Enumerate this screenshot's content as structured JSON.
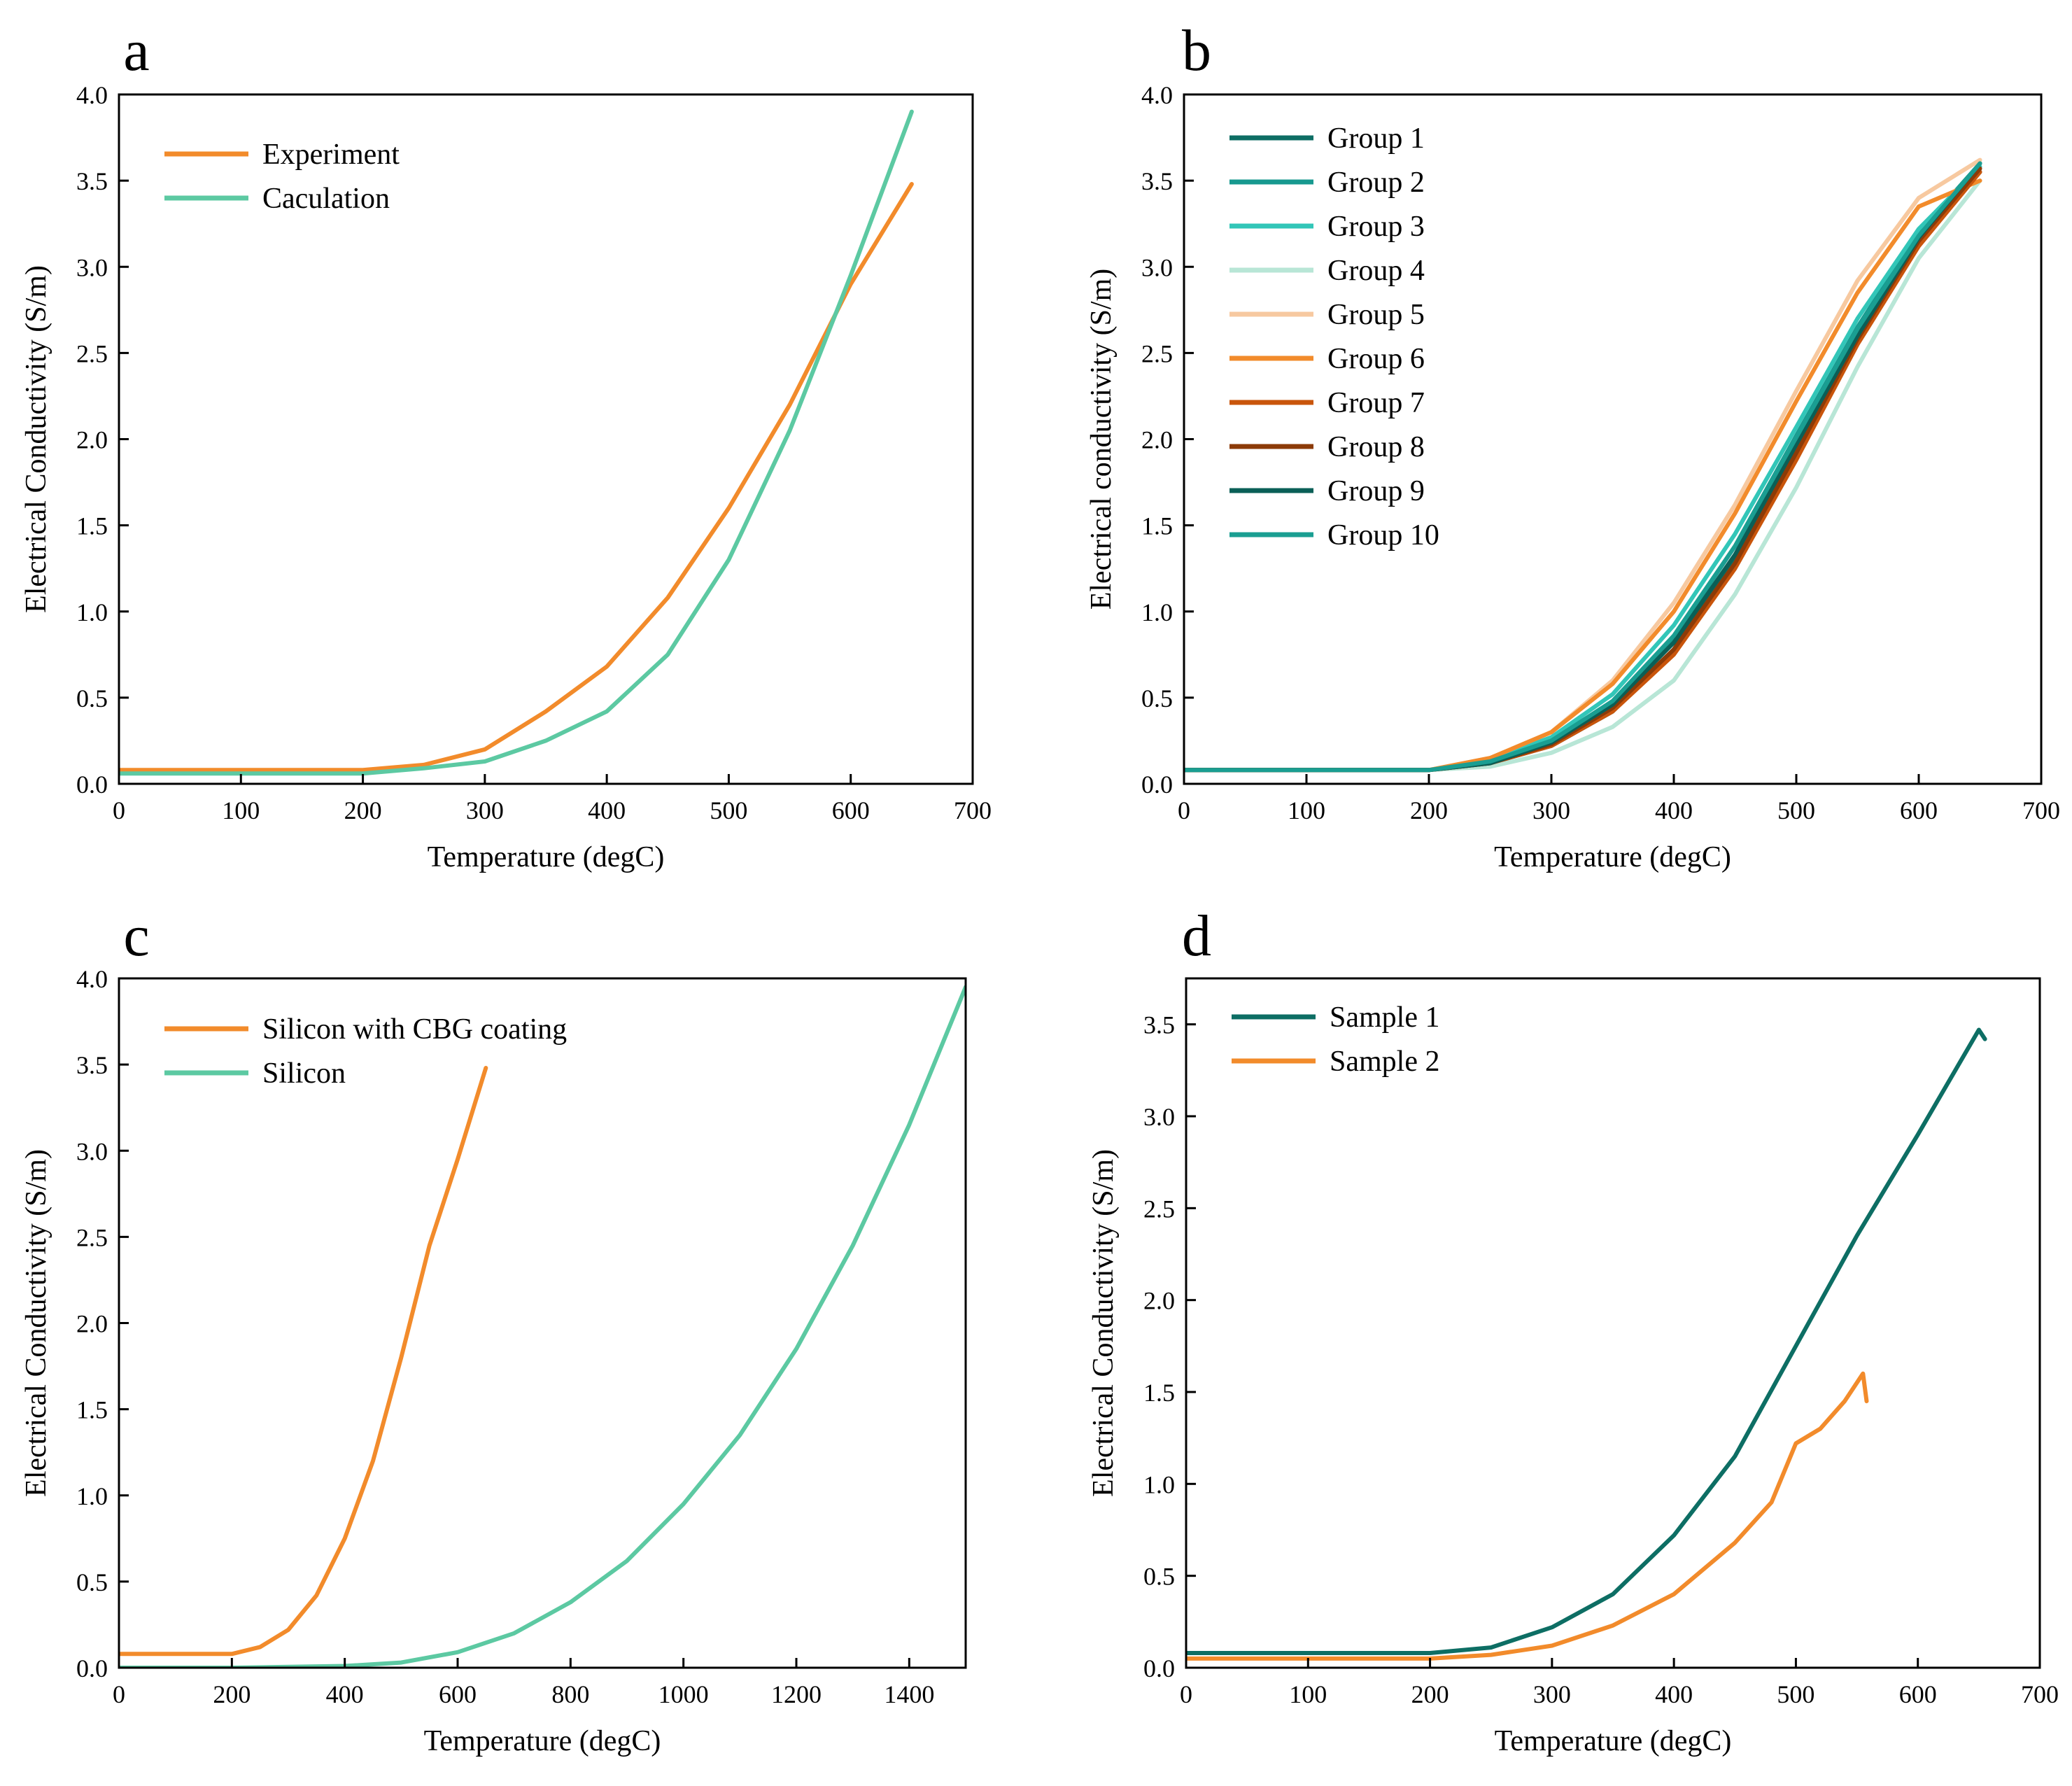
{
  "chart_data": [
    {
      "panel": "a",
      "type": "line",
      "xlabel": "Temperature (degC)",
      "ylabel": "Electrical Conductivity (S/m)",
      "xlim": [
        0,
        700
      ],
      "ylim": [
        0,
        4.0
      ],
      "xticks": [
        "0",
        "100",
        "200",
        "300",
        "400",
        "500",
        "600",
        "700"
      ],
      "yticks": [
        "0.0",
        "0.5",
        "1.0",
        "1.5",
        "2.0",
        "2.5",
        "3.0",
        "3.5",
        "4.0"
      ],
      "legend": "top-left",
      "series": [
        {
          "name": "Experiment",
          "color": "#f28b2b",
          "x": [
            0,
            200,
            250,
            300,
            350,
            400,
            450,
            500,
            550,
            600,
            650
          ],
          "y": [
            0.08,
            0.08,
            0.11,
            0.2,
            0.42,
            0.68,
            1.08,
            1.6,
            2.2,
            2.9,
            3.48
          ]
        },
        {
          "name": "Caculation",
          "color": "#5cc9a2",
          "x": [
            0,
            200,
            250,
            300,
            350,
            400,
            450,
            500,
            550,
            600,
            650
          ],
          "y": [
            0.06,
            0.06,
            0.09,
            0.13,
            0.25,
            0.42,
            0.75,
            1.3,
            2.05,
            2.95,
            3.9
          ]
        }
      ]
    },
    {
      "panel": "b",
      "type": "line",
      "xlabel": "Temperature (degC)",
      "ylabel": "Electrical conductivity (S/m)",
      "xlim": [
        0,
        700
      ],
      "ylim": [
        0,
        4.0
      ],
      "xticks": [
        "0",
        "100",
        "200",
        "300",
        "400",
        "500",
        "600",
        "700"
      ],
      "yticks": [
        "0.0",
        "0.5",
        "1.0",
        "1.5",
        "2.0",
        "2.5",
        "3.0",
        "3.5",
        "4.0"
      ],
      "legend": "top-left",
      "x": [
        0,
        200,
        250,
        300,
        350,
        400,
        450,
        500,
        550,
        600,
        650
      ],
      "series": [
        {
          "name": "Group 1",
          "color": "#0d6e64",
          "y": [
            0.08,
            0.08,
            0.12,
            0.22,
            0.42,
            0.78,
            1.3,
            1.95,
            2.6,
            3.15,
            3.55
          ]
        },
        {
          "name": "Group 2",
          "color": "#17998f",
          "y": [
            0.08,
            0.08,
            0.13,
            0.25,
            0.48,
            0.85,
            1.38,
            2.02,
            2.65,
            3.2,
            3.6
          ]
        },
        {
          "name": "Group 3",
          "color": "#32c6b8",
          "y": [
            0.08,
            0.08,
            0.14,
            0.27,
            0.52,
            0.92,
            1.45,
            2.07,
            2.7,
            3.22,
            3.58
          ]
        },
        {
          "name": "Group 4",
          "color": "#b8e6d6",
          "y": [
            0.08,
            0.08,
            0.1,
            0.18,
            0.33,
            0.6,
            1.1,
            1.72,
            2.42,
            3.05,
            3.5
          ]
        },
        {
          "name": "Group 5",
          "color": "#f7c9a0",
          "y": [
            0.08,
            0.08,
            0.15,
            0.3,
            0.6,
            1.05,
            1.62,
            2.28,
            2.92,
            3.4,
            3.62
          ]
        },
        {
          "name": "Group 6",
          "color": "#f28b2b",
          "y": [
            0.08,
            0.08,
            0.15,
            0.3,
            0.58,
            1.0,
            1.57,
            2.22,
            2.85,
            3.35,
            3.5
          ]
        },
        {
          "name": "Group 7",
          "color": "#c9550b",
          "y": [
            0.08,
            0.08,
            0.12,
            0.22,
            0.42,
            0.75,
            1.25,
            1.88,
            2.55,
            3.12,
            3.55
          ]
        },
        {
          "name": "Group 8",
          "color": "#8c3b08",
          "y": [
            0.08,
            0.08,
            0.12,
            0.23,
            0.44,
            0.78,
            1.28,
            1.92,
            2.58,
            3.15,
            3.57
          ]
        },
        {
          "name": "Group 9",
          "color": "#0a5f57",
          "y": [
            0.08,
            0.08,
            0.12,
            0.24,
            0.46,
            0.82,
            1.33,
            1.97,
            2.6,
            3.17,
            3.6
          ]
        },
        {
          "name": "Group 10",
          "color": "#1a9e92",
          "y": [
            0.08,
            0.08,
            0.13,
            0.25,
            0.48,
            0.86,
            1.38,
            2.01,
            2.64,
            3.18,
            3.6
          ]
        }
      ]
    },
    {
      "panel": "c",
      "type": "line",
      "xlabel": "Temperature (degC)",
      "ylabel": "Electrical Conductivity (S/m)",
      "xlim": [
        0,
        1500
      ],
      "ylim": [
        0,
        4.0
      ],
      "xticks": [
        "0",
        "200",
        "400",
        "600",
        "800",
        "1000",
        "1200",
        "1400"
      ],
      "yticks": [
        "0.0",
        "0.5",
        "1.0",
        "1.5",
        "2.0",
        "2.5",
        "3.0",
        "3.5",
        "4.0"
      ],
      "legend": "top-left",
      "series": [
        {
          "name": "Silicon with CBG coating",
          "color": "#f28b2b",
          "x": [
            0,
            200,
            250,
            300,
            350,
            400,
            450,
            500,
            550,
            600,
            650
          ],
          "y": [
            0.08,
            0.08,
            0.12,
            0.22,
            0.42,
            0.75,
            1.2,
            1.8,
            2.45,
            2.95,
            3.48
          ]
        },
        {
          "name": "Silicon",
          "color": "#5cc9a2",
          "x": [
            0,
            200,
            400,
            500,
            600,
            700,
            800,
            900,
            1000,
            1100,
            1200,
            1300,
            1400,
            1500
          ],
          "y": [
            0.0,
            0.0,
            0.01,
            0.03,
            0.09,
            0.2,
            0.38,
            0.62,
            0.95,
            1.35,
            1.85,
            2.45,
            3.15,
            3.95
          ]
        }
      ]
    },
    {
      "panel": "d",
      "type": "line",
      "xlabel": "Temperature (degC)",
      "ylabel": "Electrical Conductivity (S/m)",
      "xlim": [
        0,
        700
      ],
      "ylim": [
        0,
        3.75
      ],
      "xticks": [
        "0",
        "100",
        "200",
        "300",
        "400",
        "500",
        "600",
        "700"
      ],
      "yticks": [
        "0.0",
        "0.5",
        "1.0",
        "1.5",
        "2.0",
        "2.5",
        "3.0",
        "3.5"
      ],
      "legend": "top-left",
      "series": [
        {
          "name": "Sample 1",
          "color": "#0d6e64",
          "x": [
            0,
            200,
            250,
            300,
            350,
            400,
            450,
            500,
            550,
            600,
            650,
            655
          ],
          "y": [
            0.08,
            0.08,
            0.11,
            0.22,
            0.4,
            0.72,
            1.15,
            1.75,
            2.35,
            2.9,
            3.47,
            3.42
          ]
        },
        {
          "name": "Sample 2",
          "color": "#f28b2b",
          "x": [
            0,
            200,
            250,
            300,
            350,
            400,
            450,
            480,
            500,
            520,
            540,
            555,
            558
          ],
          "y": [
            0.05,
            0.05,
            0.07,
            0.12,
            0.23,
            0.4,
            0.68,
            0.9,
            1.22,
            1.3,
            1.45,
            1.6,
            1.45
          ]
        }
      ]
    }
  ]
}
